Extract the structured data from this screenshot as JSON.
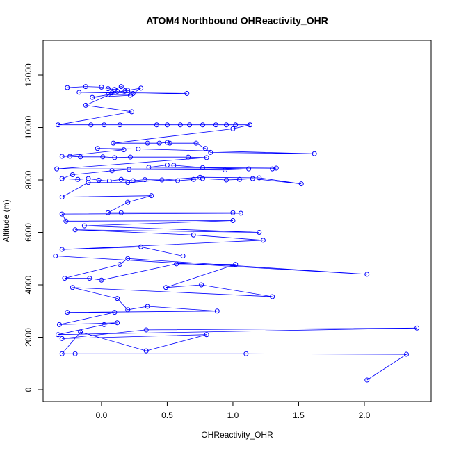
{
  "chart_data": {
    "type": "line",
    "title": "ATOM4 Northbound OHReactivity_OHR",
    "x_label": "OHReactivity_OHR",
    "y_label": "Altitude (m)",
    "x": [
      -0.26,
      -0.12,
      0.0,
      0.05,
      0.1,
      0.15,
      0.2,
      0.24,
      0.3,
      0.18,
      0.08,
      -0.17,
      0.65,
      0.05,
      -0.07,
      0.22,
      0.12,
      -0.12,
      0.23,
      -0.33,
      -0.08,
      0.02,
      0.14,
      0.42,
      0.5,
      0.6,
      0.67,
      0.77,
      0.87,
      0.95,
      1.02,
      1.13,
      1.13,
      1.0,
      0.09,
      0.35,
      0.44,
      0.5,
      0.52,
      0.72,
      0.79,
      0.83,
      1.62,
      0.28,
      -0.03,
      0.17,
      -0.3,
      -0.24,
      -0.16,
      0.01,
      0.1,
      0.22,
      0.66,
      0.8,
      -0.34,
      1.3,
      1.33,
      0.36,
      0.5,
      0.55,
      0.77,
      1.12,
      0.94,
      0.21,
      0.08,
      -0.22,
      -0.3,
      -0.18,
      -0.1,
      -0.02,
      0.06,
      0.15,
      0.24,
      0.33,
      0.46,
      0.58,
      0.7,
      0.77,
      0.95,
      1.05,
      1.15,
      1.52,
      1.2,
      0.75,
      0.2,
      -0.1,
      -0.3,
      0.38,
      0.2,
      0.05,
      0.15,
      1.0,
      1.06,
      -0.3,
      -0.27,
      1.0,
      -0.13,
      1.2,
      -0.2,
      0.7,
      1.23,
      -0.3,
      0.3,
      0.62,
      -0.35,
      2.02,
      0.2,
      0.14,
      -0.28,
      -0.09,
      0.0,
      0.57,
      1.02,
      0.49,
      0.76,
      1.3,
      -0.22,
      0.12,
      0.2,
      0.35,
      0.88,
      -0.26,
      0.1,
      -0.32,
      0.12,
      0.02,
      -0.33,
      2.4,
      0.34,
      -0.3,
      0.8,
      0.34,
      -0.16,
      -0.3,
      -0.2,
      1.1,
      2.32,
      2.02
    ],
    "series": [
      {
        "color": "#0000ff",
        "values": [
          11520,
          11560,
          11540,
          11480,
          11450,
          11560,
          11420,
          11300,
          11500,
          11400,
          11320,
          11340,
          11300,
          11250,
          11150,
          11230,
          11380,
          10850,
          10600,
          10100,
          10100,
          10100,
          10100,
          10100,
          10100,
          10100,
          10100,
          10100,
          10100,
          10100,
          10100,
          10100,
          10100,
          9950,
          9400,
          9400,
          9400,
          9430,
          9400,
          9400,
          9200,
          9050,
          9000,
          9180,
          9200,
          9150,
          8900,
          8900,
          8880,
          8880,
          8850,
          8870,
          8870,
          8850,
          8420,
          8420,
          8450,
          8480,
          8570,
          8560,
          8470,
          8420,
          8380,
          8400,
          8350,
          8200,
          8050,
          8020,
          8050,
          7990,
          7960,
          8020,
          7970,
          8010,
          8000,
          7970,
          8020,
          8050,
          8000,
          8020,
          8050,
          7850,
          8080,
          8100,
          7900,
          7900,
          7350,
          7400,
          7150,
          6750,
          6750,
          6750,
          6730,
          6700,
          6430,
          6450,
          6250,
          6000,
          6100,
          5900,
          5700,
          5350,
          5450,
          5100,
          5100,
          4400,
          5000,
          4780,
          4250,
          4250,
          4180,
          4800,
          4780,
          3900,
          4000,
          3550,
          3900,
          3480,
          3050,
          3180,
          3000,
          2950,
          2950,
          2480,
          2550,
          2480,
          2100,
          2350,
          2280,
          1950,
          2100,
          1480,
          2200,
          1370,
          1370,
          1370,
          1350,
          370
        ]
      }
    ],
    "xlim": [
      -0.444,
      2.508
    ],
    "ylim": [
      -450,
      13325
    ],
    "xticks": [
      {
        "value": 0,
        "label": "0.0"
      },
      {
        "value": 0.5,
        "label": "0.5"
      },
      {
        "value": 1,
        "label": "1.0"
      },
      {
        "value": 1.5,
        "label": "1.5"
      },
      {
        "value": 2,
        "label": "2.0"
      }
    ],
    "yticks": [
      0,
      2000,
      4000,
      6000,
      8000,
      10000,
      12000
    ]
  }
}
